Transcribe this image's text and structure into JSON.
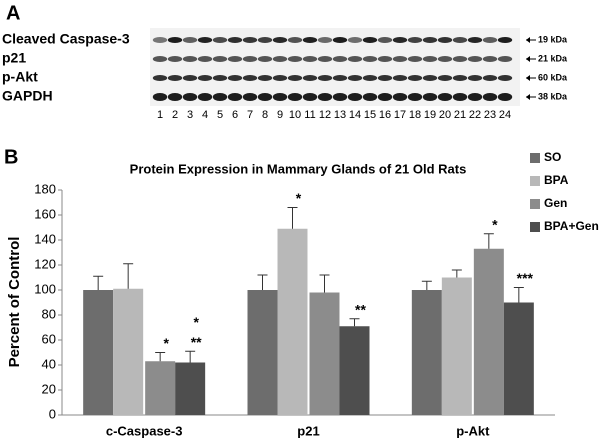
{
  "panel_a": {
    "label": "A",
    "rows": [
      {
        "name": "Cleaved Caspase-3",
        "kda": "19 kDa"
      },
      {
        "name": "p21",
        "kda": "21 kDa"
      },
      {
        "name": "p-Akt",
        "kda": "60 kDa"
      },
      {
        "name": "GAPDH",
        "kda": "38 kDa"
      }
    ],
    "lanes": [
      1,
      2,
      3,
      4,
      5,
      6,
      7,
      8,
      9,
      10,
      11,
      12,
      13,
      14,
      15,
      16,
      17,
      18,
      19,
      20,
      21,
      22,
      23,
      24
    ]
  },
  "chart_data": {
    "type": "bar",
    "panel_label": "B",
    "title": "Protein Expression in Mammary Glands of 21 Old Rats",
    "y_label": "Percent of Control",
    "categories": [
      "c-Caspase-3",
      "p21",
      "p-Akt"
    ],
    "series": [
      {
        "name": "SO",
        "color": "#6d6d6d",
        "values": [
          100,
          100,
          100
        ],
        "errors": [
          11,
          12,
          7
        ],
        "significance": [
          null,
          null,
          null
        ]
      },
      {
        "name": "BPA",
        "color": "#b8b8b8",
        "values": [
          101,
          149,
          110
        ],
        "errors": [
          20,
          17,
          6
        ],
        "significance": [
          null,
          [
            "*"
          ],
          null
        ]
      },
      {
        "name": "Gen",
        "color": "#8c8c8c",
        "values": [
          43,
          98,
          133
        ],
        "errors": [
          7,
          14,
          12
        ],
        "significance": [
          [
            "*"
          ],
          null,
          [
            "*"
          ]
        ]
      },
      {
        "name": "BPA+Gen",
        "color": "#4e4e4e",
        "values": [
          42,
          71,
          90
        ],
        "errors": [
          9,
          6,
          12
        ],
        "significance": [
          [
            "*",
            "**"
          ],
          [
            "**"
          ],
          [
            "***"
          ]
        ]
      }
    ],
    "ylim": [
      0,
      180
    ],
    "yticks": [
      0,
      20,
      40,
      60,
      80,
      100,
      120,
      140,
      160,
      180
    ],
    "grid": false,
    "legend": "right"
  }
}
